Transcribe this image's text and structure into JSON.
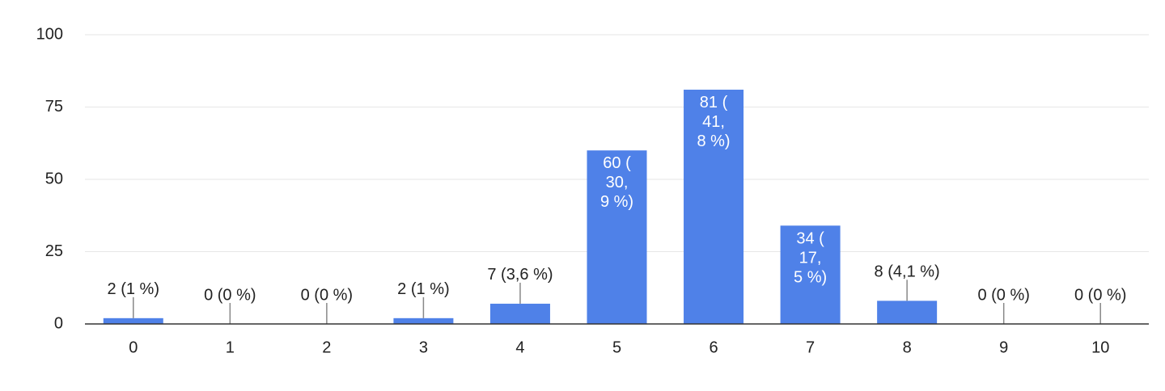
{
  "chart_data": {
    "type": "bar",
    "categories": [
      "0",
      "1",
      "2",
      "3",
      "4",
      "5",
      "6",
      "7",
      "8",
      "9",
      "10"
    ],
    "values": [
      2,
      0,
      0,
      2,
      7,
      60,
      81,
      34,
      8,
      0,
      0
    ],
    "value_labels": [
      "2 (1 %)",
      "0 (0 %)",
      "0 (0 %)",
      "2 (1 %)",
      "7 (3,6 %)",
      "60 (30,9 %)",
      "81 (41,8 %)",
      "34 (17,5 %)",
      "8 (4,1 %)",
      "0 (0 %)",
      "0 (0 %)"
    ],
    "color": "#4f81e8",
    "ylim": [
      0,
      100
    ],
    "yticks": [
      0,
      25,
      50,
      75,
      100
    ],
    "grid": true
  }
}
